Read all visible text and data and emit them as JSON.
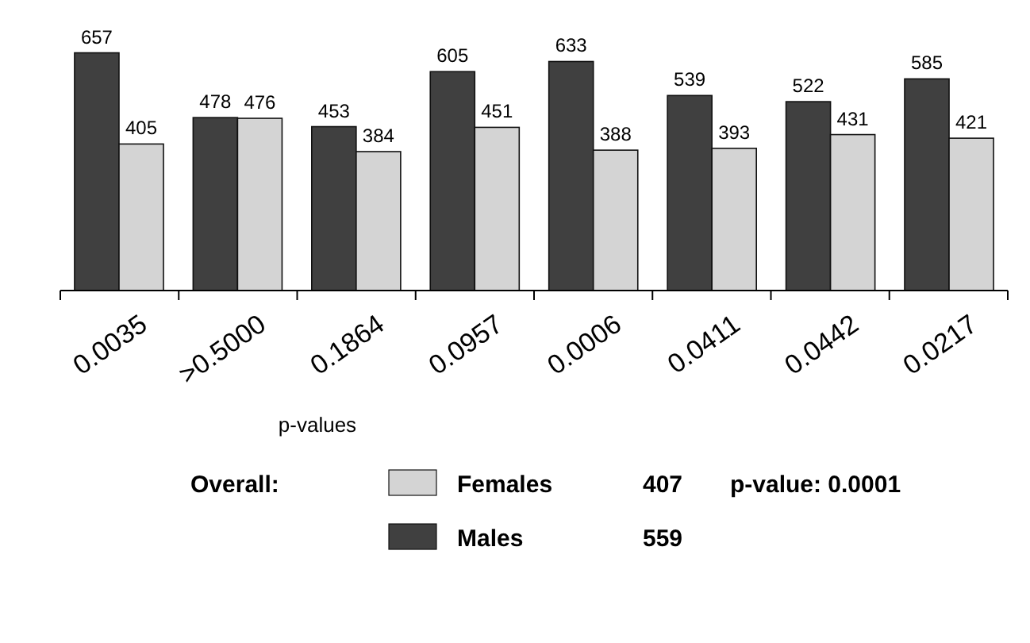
{
  "chart_data": {
    "type": "bar",
    "xlabel": "p-values",
    "categories": [
      "0.0035",
      ">0.5000",
      "0.1864",
      "0.0957",
      "0.0006",
      "0.0411",
      "0.0442",
      "0.0217"
    ],
    "series": [
      {
        "name": "Males",
        "color": "#404040",
        "values": [
          657,
          478,
          453,
          605,
          633,
          539,
          522,
          585
        ]
      },
      {
        "name": "Females",
        "color": "#d4d4d4",
        "values": [
          405,
          476,
          384,
          451,
          388,
          393,
          431,
          421
        ]
      }
    ],
    "data_labels": true,
    "legend": "bottom",
    "annotations": [
      "Overall:",
      "407",
      "p-value: 0.0001",
      "559"
    ]
  }
}
